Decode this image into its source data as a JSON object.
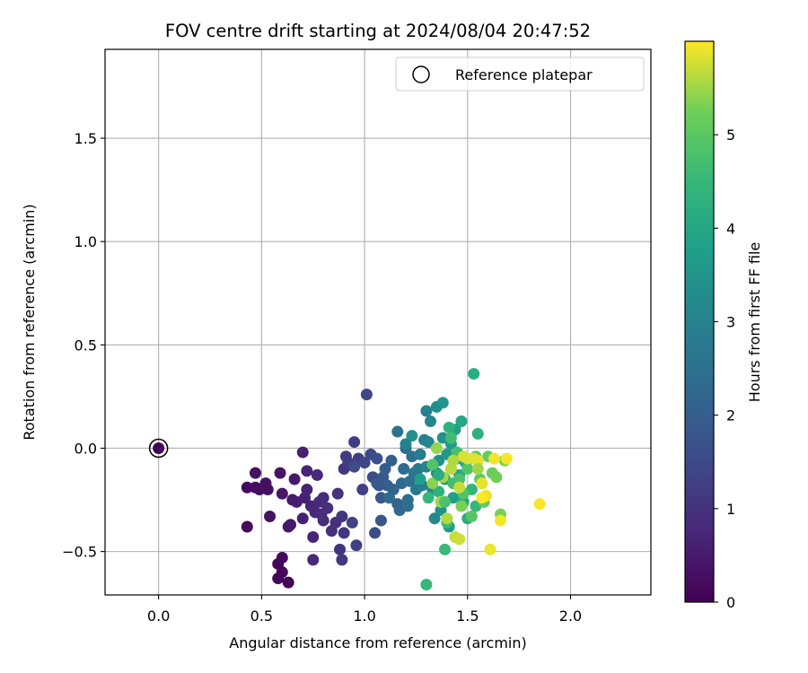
{
  "chart_data": {
    "type": "scatter",
    "title": "FOV centre drift starting at 2024/08/04 20:47:52",
    "xlabel": "Angular distance from reference (arcmin)",
    "ylabel": "Rotation from reference (arcmin)",
    "xlim": [
      -0.26,
      2.39
    ],
    "ylim": [
      -0.71,
      1.93
    ],
    "xticks": [
      0.0,
      0.5,
      1.0,
      1.5,
      2.0
    ],
    "xtick_labels": [
      "0.0",
      "0.5",
      "1.0",
      "1.5",
      "2.0"
    ],
    "yticks": [
      -0.5,
      0.0,
      0.5,
      1.0,
      1.5
    ],
    "ytick_labels": [
      "−0.5",
      "0.0",
      "0.5",
      "1.0",
      "1.5"
    ],
    "grid": true,
    "legend": {
      "position": "top-right",
      "entries": [
        "Reference platepar"
      ]
    },
    "reference_point": {
      "x": 0.0,
      "y": 0.0
    },
    "colorbar": {
      "label": "Hours from first FF file",
      "colormap": "viridis",
      "range": [
        0,
        6.0
      ],
      "ticks": [
        0,
        1,
        2,
        3,
        4,
        5
      ],
      "tick_labels": [
        "0",
        "1",
        "2",
        "3",
        "4",
        "5"
      ]
    },
    "point_color_by": "hours",
    "points": [
      {
        "x": 0.63,
        "y": -0.65,
        "hours": 0.05
      },
      {
        "x": 0.58,
        "y": -0.63,
        "hours": 0.08
      },
      {
        "x": 0.58,
        "y": -0.56,
        "hours": 0.1
      },
      {
        "x": 0.6,
        "y": -0.6,
        "hours": 0.12
      },
      {
        "x": 0.6,
        "y": -0.53,
        "hours": 0.15
      },
      {
        "x": 0.43,
        "y": -0.38,
        "hours": 0.18
      },
      {
        "x": 0.43,
        "y": -0.19,
        "hours": 0.2
      },
      {
        "x": 0.47,
        "y": -0.19,
        "hours": 0.22
      },
      {
        "x": 0.49,
        "y": -0.2,
        "hours": 0.25
      },
      {
        "x": 0.52,
        "y": -0.17,
        "hours": 0.28
      },
      {
        "x": 0.53,
        "y": -0.2,
        "hours": 0.3
      },
      {
        "x": 0.47,
        "y": -0.12,
        "hours": 0.32
      },
      {
        "x": 0.54,
        "y": -0.33,
        "hours": 0.35
      },
      {
        "x": 0.59,
        "y": -0.12,
        "hours": 0.38
      },
      {
        "x": 0.6,
        "y": -0.22,
        "hours": 0.4
      },
      {
        "x": 0.63,
        "y": -0.38,
        "hours": 0.42
      },
      {
        "x": 0.64,
        "y": -0.37,
        "hours": 0.45
      },
      {
        "x": 0.65,
        "y": -0.25,
        "hours": 0.48
      },
      {
        "x": 0.66,
        "y": -0.15,
        "hours": 0.5
      },
      {
        "x": 0.67,
        "y": -0.26,
        "hours": 0.55
      },
      {
        "x": 0.7,
        "y": -0.02,
        "hours": 0.58
      },
      {
        "x": 0.7,
        "y": -0.34,
        "hours": 0.6
      },
      {
        "x": 0.71,
        "y": -0.24,
        "hours": 0.62
      },
      {
        "x": 0.72,
        "y": -0.2,
        "hours": 0.65
      },
      {
        "x": 0.72,
        "y": -0.11,
        "hours": 0.68
      },
      {
        "x": 0.74,
        "y": -0.28,
        "hours": 0.7
      },
      {
        "x": 0.75,
        "y": -0.43,
        "hours": 0.72
      },
      {
        "x": 0.75,
        "y": -0.54,
        "hours": 0.75
      },
      {
        "x": 0.76,
        "y": -0.31,
        "hours": 0.78
      },
      {
        "x": 0.77,
        "y": -0.13,
        "hours": 0.8
      },
      {
        "x": 0.78,
        "y": -0.26,
        "hours": 0.82
      },
      {
        "x": 0.79,
        "y": -0.32,
        "hours": 0.85
      },
      {
        "x": 0.8,
        "y": -0.24,
        "hours": 0.88
      },
      {
        "x": 0.8,
        "y": -0.35,
        "hours": 0.9
      },
      {
        "x": 0.82,
        "y": -0.29,
        "hours": 0.92
      },
      {
        "x": 0.84,
        "y": -0.4,
        "hours": 0.95
      },
      {
        "x": 0.86,
        "y": -0.36,
        "hours": 0.98
      },
      {
        "x": 0.87,
        "y": -0.22,
        "hours": 1.0
      },
      {
        "x": 0.88,
        "y": -0.49,
        "hours": 1.02
      },
      {
        "x": 0.89,
        "y": -0.33,
        "hours": 1.05
      },
      {
        "x": 0.89,
        "y": -0.54,
        "hours": 1.08
      },
      {
        "x": 0.9,
        "y": -0.41,
        "hours": 1.1
      },
      {
        "x": 0.9,
        "y": -0.1,
        "hours": 1.12
      },
      {
        "x": 0.91,
        "y": -0.04,
        "hours": 1.15
      },
      {
        "x": 0.92,
        "y": -0.07,
        "hours": 1.18
      },
      {
        "x": 0.94,
        "y": -0.08,
        "hours": 1.2
      },
      {
        "x": 0.95,
        "y": 0.03,
        "hours": 1.22
      },
      {
        "x": 0.96,
        "y": -0.47,
        "hours": 1.25
      },
      {
        "x": 0.97,
        "y": -0.05,
        "hours": 1.28
      },
      {
        "x": 0.99,
        "y": -0.2,
        "hours": 1.3
      },
      {
        "x": 0.94,
        "y": -0.36,
        "hours": 1.35
      },
      {
        "x": 1.0,
        "y": -0.07,
        "hours": 1.4
      },
      {
        "x": 1.01,
        "y": 0.26,
        "hours": 1.45
      },
      {
        "x": 1.03,
        "y": -0.03,
        "hours": 1.5
      },
      {
        "x": 1.04,
        "y": -0.14,
        "hours": 1.55
      },
      {
        "x": 1.05,
        "y": -0.41,
        "hours": 1.6
      },
      {
        "x": 1.06,
        "y": -0.05,
        "hours": 1.65
      },
      {
        "x": 1.07,
        "y": -0.18,
        "hours": 1.7
      },
      {
        "x": 1.08,
        "y": -0.35,
        "hours": 1.8
      },
      {
        "x": 1.08,
        "y": -0.24,
        "hours": 1.85
      },
      {
        "x": 1.09,
        "y": -0.14,
        "hours": 1.9
      },
      {
        "x": 1.1,
        "y": -0.1,
        "hours": 1.95
      },
      {
        "x": 1.11,
        "y": -0.18,
        "hours": 2.0
      },
      {
        "x": 1.13,
        "y": -0.06,
        "hours": 2.05
      },
      {
        "x": 1.14,
        "y": -0.2,
        "hours": 2.1
      },
      {
        "x": 1.16,
        "y": -0.27,
        "hours": 2.15
      },
      {
        "x": 1.17,
        "y": -0.3,
        "hours": 2.2
      },
      {
        "x": 1.18,
        "y": -0.17,
        "hours": 2.25
      },
      {
        "x": 1.19,
        "y": -0.1,
        "hours": 2.3
      },
      {
        "x": 1.2,
        "y": 0.0,
        "hours": 2.35
      },
      {
        "x": 1.21,
        "y": -0.25,
        "hours": 2.4
      },
      {
        "x": 1.21,
        "y": -0.28,
        "hours": 2.45
      },
      {
        "x": 1.22,
        "y": -0.16,
        "hours": 2.5
      },
      {
        "x": 1.23,
        "y": -0.04,
        "hours": 2.55
      },
      {
        "x": 1.16,
        "y": 0.08,
        "hours": 2.6
      },
      {
        "x": 1.24,
        "y": -0.12,
        "hours": 2.65
      },
      {
        "x": 1.25,
        "y": -0.2,
        "hours": 2.7
      },
      {
        "x": 1.26,
        "y": -0.1,
        "hours": 2.75
      },
      {
        "x": 1.27,
        "y": -0.03,
        "hours": 2.8
      },
      {
        "x": 1.28,
        "y": -0.18,
        "hours": 2.85
      },
      {
        "x": 1.29,
        "y": 0.04,
        "hours": 2.9
      },
      {
        "x": 1.3,
        "y": 0.18,
        "hours": 2.95
      },
      {
        "x": 1.3,
        "y": -0.09,
        "hours": 3.0
      },
      {
        "x": 1.31,
        "y": 0.03,
        "hours": 3.05
      },
      {
        "x": 1.32,
        "y": 0.13,
        "hours": 3.1
      },
      {
        "x": 1.33,
        "y": -0.2,
        "hours": 3.15
      },
      {
        "x": 1.34,
        "y": -0.34,
        "hours": 3.2
      },
      {
        "x": 1.35,
        "y": -0.12,
        "hours": 3.25
      },
      {
        "x": 1.35,
        "y": 0.2,
        "hours": 3.3
      },
      {
        "x": 1.36,
        "y": -0.06,
        "hours": 3.35
      },
      {
        "x": 1.37,
        "y": -0.3,
        "hours": 3.4
      },
      {
        "x": 1.38,
        "y": 0.05,
        "hours": 3.45
      },
      {
        "x": 1.38,
        "y": 0.22,
        "hours": 3.5
      },
      {
        "x": 1.39,
        "y": -0.15,
        "hours": 3.55
      },
      {
        "x": 1.4,
        "y": -0.03,
        "hours": 3.6
      },
      {
        "x": 1.41,
        "y": -0.38,
        "hours": 3.65
      },
      {
        "x": 1.42,
        "y": 0.02,
        "hours": 3.7
      },
      {
        "x": 1.42,
        "y": -0.1,
        "hours": 3.75
      },
      {
        "x": 1.43,
        "y": -0.24,
        "hours": 3.8
      },
      {
        "x": 1.44,
        "y": 0.09,
        "hours": 3.85
      },
      {
        "x": 1.45,
        "y": -0.05,
        "hours": 3.9
      },
      {
        "x": 1.46,
        "y": -0.13,
        "hours": 3.95
      },
      {
        "x": 1.47,
        "y": 0.13,
        "hours": 4.0
      },
      {
        "x": 1.48,
        "y": -0.26,
        "hours": 4.05
      },
      {
        "x": 1.49,
        "y": -0.07,
        "hours": 4.1
      },
      {
        "x": 1.5,
        "y": -0.34,
        "hours": 4.15
      },
      {
        "x": 1.53,
        "y": 0.36,
        "hours": 4.2
      },
      {
        "x": 1.55,
        "y": 0.07,
        "hours": 4.25
      },
      {
        "x": 1.36,
        "y": -0.21,
        "hours": 4.3
      },
      {
        "x": 1.41,
        "y": 0.1,
        "hours": 4.35
      },
      {
        "x": 1.52,
        "y": -0.2,
        "hours": 4.4
      },
      {
        "x": 1.54,
        "y": -0.28,
        "hours": 4.45
      },
      {
        "x": 1.3,
        "y": -0.66,
        "hours": 4.5
      },
      {
        "x": 1.39,
        "y": -0.49,
        "hours": 4.55
      },
      {
        "x": 1.4,
        "y": -0.36,
        "hours": 4.6
      },
      {
        "x": 1.42,
        "y": 0.05,
        "hours": 4.65
      },
      {
        "x": 1.43,
        "y": -0.17,
        "hours": 4.7
      },
      {
        "x": 1.45,
        "y": -0.02,
        "hours": 4.75
      },
      {
        "x": 1.46,
        "y": -0.15,
        "hours": 4.8
      },
      {
        "x": 1.48,
        "y": -0.22,
        "hours": 4.85
      },
      {
        "x": 1.5,
        "y": -0.1,
        "hours": 4.9
      },
      {
        "x": 1.52,
        "y": -0.33,
        "hours": 4.95
      },
      {
        "x": 1.54,
        "y": -0.04,
        "hours": 5.0
      },
      {
        "x": 1.56,
        "y": -0.15,
        "hours": 5.05
      },
      {
        "x": 1.58,
        "y": -0.26,
        "hours": 5.1
      },
      {
        "x": 1.6,
        "y": -0.04,
        "hours": 5.15
      },
      {
        "x": 1.62,
        "y": -0.12,
        "hours": 5.2
      },
      {
        "x": 1.64,
        "y": -0.14,
        "hours": 5.25
      },
      {
        "x": 1.66,
        "y": -0.32,
        "hours": 5.3
      },
      {
        "x": 1.68,
        "y": -0.06,
        "hours": 5.35
      },
      {
        "x": 1.33,
        "y": -0.17,
        "hours": 5.4
      },
      {
        "x": 1.35,
        "y": 0.0,
        "hours": 5.45
      },
      {
        "x": 1.37,
        "y": -0.26,
        "hours": 5.5
      },
      {
        "x": 1.38,
        "y": -0.14,
        "hours": 5.55
      },
      {
        "x": 1.4,
        "y": -0.34,
        "hours": 5.6
      },
      {
        "x": 1.42,
        "y": -0.1,
        "hours": 5.65
      },
      {
        "x": 1.44,
        "y": -0.43,
        "hours": 5.7
      },
      {
        "x": 1.46,
        "y": -0.44,
        "hours": 5.75
      },
      {
        "x": 1.48,
        "y": -0.04,
        "hours": 5.8
      },
      {
        "x": 1.5,
        "y": -0.05,
        "hours": 5.82
      },
      {
        "x": 1.53,
        "y": -0.05,
        "hours": 5.84
      },
      {
        "x": 1.55,
        "y": -0.06,
        "hours": 5.86
      },
      {
        "x": 1.57,
        "y": -0.17,
        "hours": 5.88
      },
      {
        "x": 1.59,
        "y": -0.23,
        "hours": 5.9
      },
      {
        "x": 1.61,
        "y": -0.49,
        "hours": 5.92
      },
      {
        "x": 1.63,
        "y": -0.05,
        "hours": 5.94
      },
      {
        "x": 1.66,
        "y": -0.35,
        "hours": 5.96
      },
      {
        "x": 1.69,
        "y": -0.05,
        "hours": 5.97
      },
      {
        "x": 1.85,
        "y": -0.27,
        "hours": 5.98
      },
      {
        "x": 1.57,
        "y": -0.24,
        "hours": 5.99
      },
      {
        "x": 1.43,
        "y": -0.06,
        "hours": 5.6
      },
      {
        "x": 1.46,
        "y": -0.19,
        "hours": 5.7
      },
      {
        "x": 1.33,
        "y": -0.08,
        "hours": 4.9
      },
      {
        "x": 1.36,
        "y": -0.13,
        "hours": 4.2
      },
      {
        "x": 1.27,
        "y": -0.15,
        "hours": 3.8
      },
      {
        "x": 1.31,
        "y": -0.24,
        "hours": 4.5
      },
      {
        "x": 1.39,
        "y": -0.26,
        "hours": 4.8
      },
      {
        "x": 1.47,
        "y": -0.28,
        "hours": 5.3
      },
      {
        "x": 1.55,
        "y": -0.1,
        "hours": 5.5
      },
      {
        "x": 1.23,
        "y": 0.06,
        "hours": 3.4
      },
      {
        "x": 1.2,
        "y": 0.02,
        "hours": 3.0
      },
      {
        "x": 1.12,
        "y": -0.24,
        "hours": 2.35
      },
      {
        "x": 1.06,
        "y": -0.17,
        "hours": 1.9
      },
      {
        "x": 0.95,
        "y": -0.09,
        "hours": 1.6
      }
    ]
  }
}
